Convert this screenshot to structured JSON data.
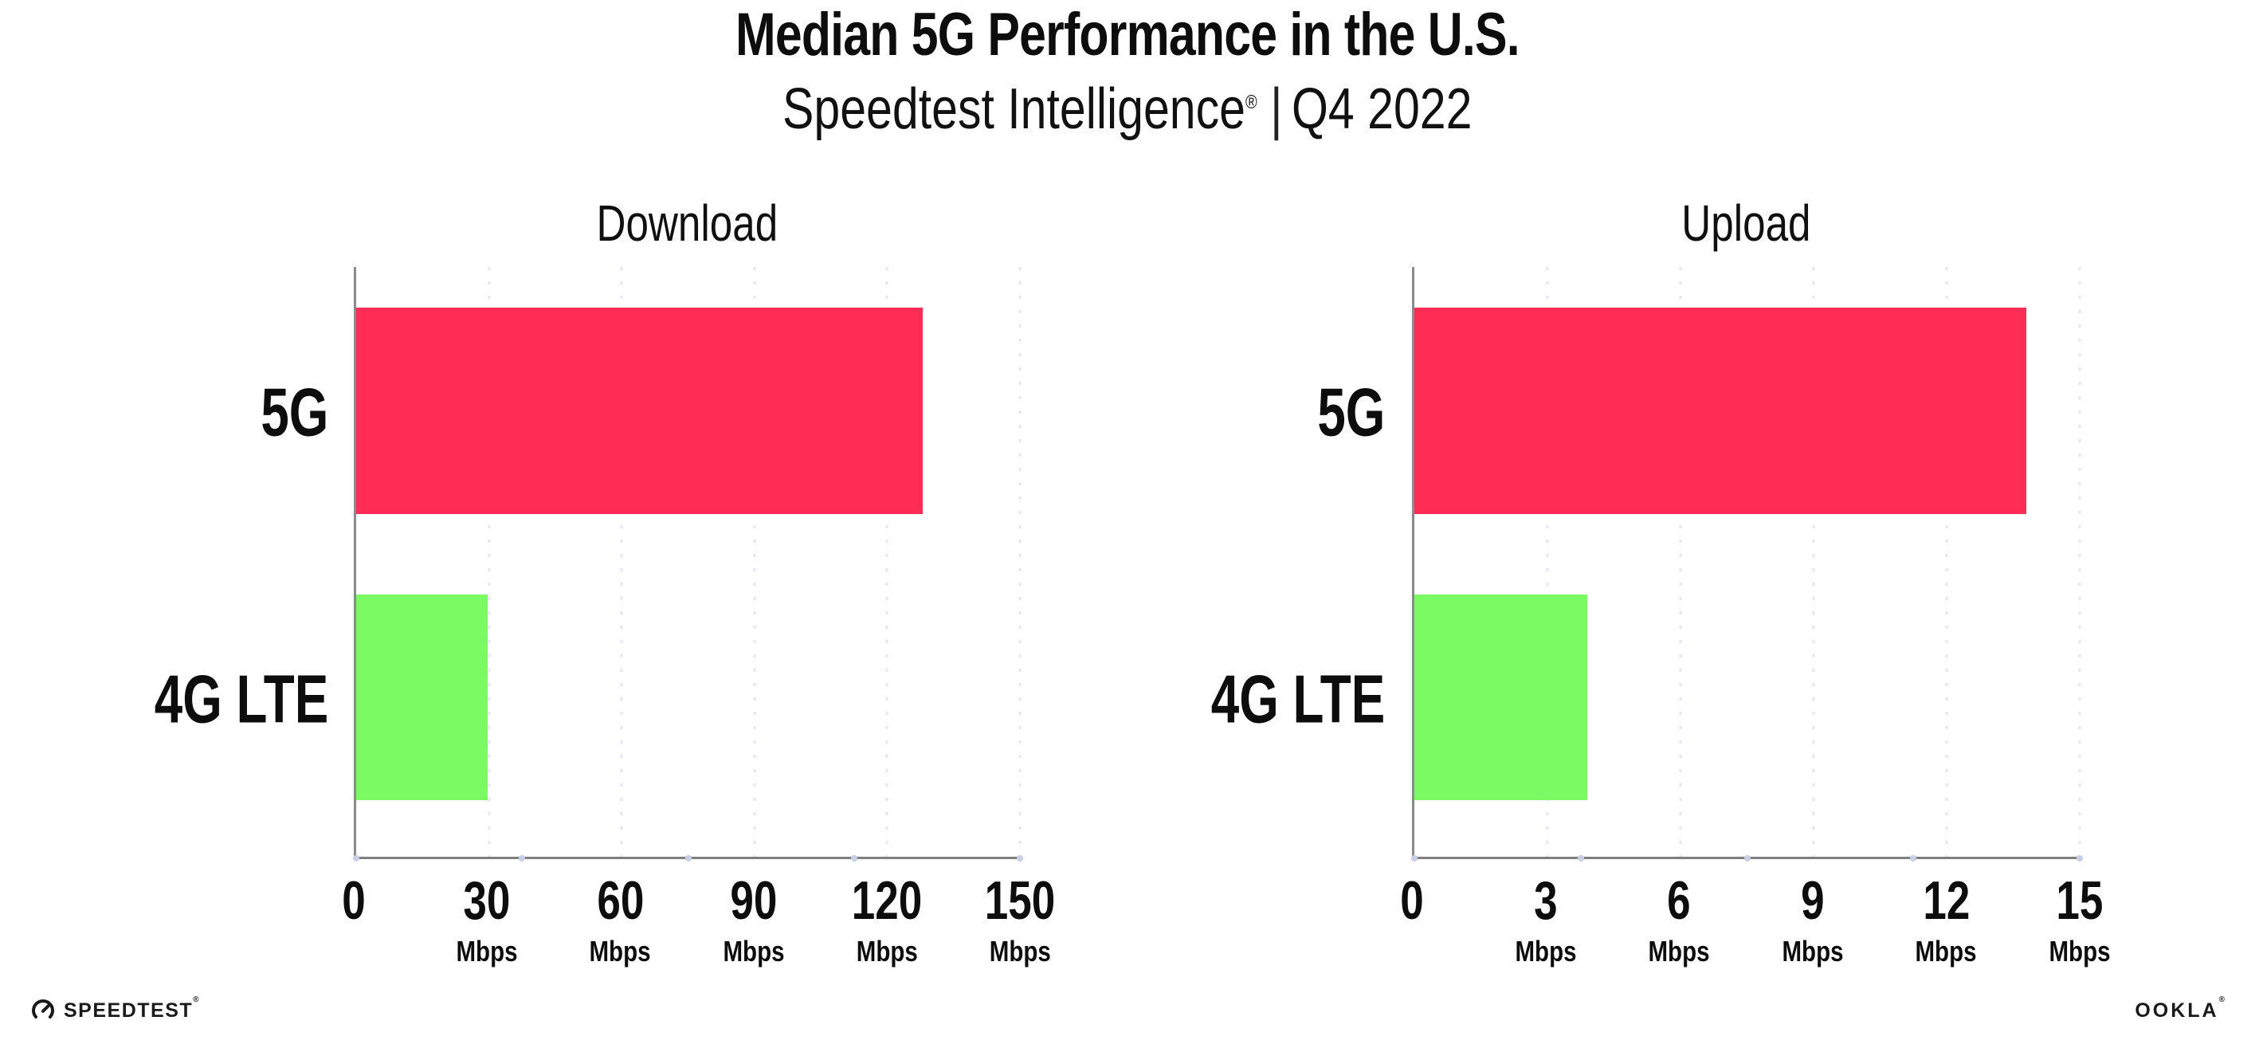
{
  "header": {
    "title": "Median 5G Performance in the U.S.",
    "subtitle_brand": "Speedtest Intelligence",
    "subtitle_reg": "®",
    "subtitle_sep": "|",
    "subtitle_period": "Q4 2022"
  },
  "chart_data": [
    {
      "type": "bar",
      "orientation": "horizontal",
      "title": "Download",
      "categories": [
        "5G",
        "4G LTE"
      ],
      "values": [
        128,
        29.7
      ],
      "unit": "Mbps",
      "xlim": [
        0,
        150
      ],
      "ticks": [
        0,
        30,
        60,
        90,
        120,
        150
      ],
      "bar_colors": [
        "#FF2D55",
        "#7CFA64"
      ],
      "grid": "dotted-vertical",
      "legend": "none"
    },
    {
      "type": "bar",
      "orientation": "horizontal",
      "title": "Upload",
      "categories": [
        "5G",
        "4G LTE"
      ],
      "values": [
        13.8,
        3.9
      ],
      "unit": "Mbps",
      "xlim": [
        0,
        15
      ],
      "ticks": [
        0,
        3,
        6,
        9,
        12,
        15
      ],
      "bar_colors": [
        "#FF2D55",
        "#7CFA64"
      ],
      "grid": "dotted-vertical",
      "legend": "none"
    }
  ],
  "footer": {
    "speedtest_label": "SPEEDTEST",
    "speedtest_reg": "®",
    "ookla_label": "OOKLA",
    "ookla_reg": "®"
  },
  "colors": {
    "bar_5g": "#FF2D55",
    "bar_4g_lte": "#7CFA64",
    "axis": "#8B8B8B",
    "grid_dot": "#E5E6F0",
    "baseline_dot": "#C8CEE3",
    "text": "#0D0D0D",
    "background": "#FFFFFF"
  }
}
